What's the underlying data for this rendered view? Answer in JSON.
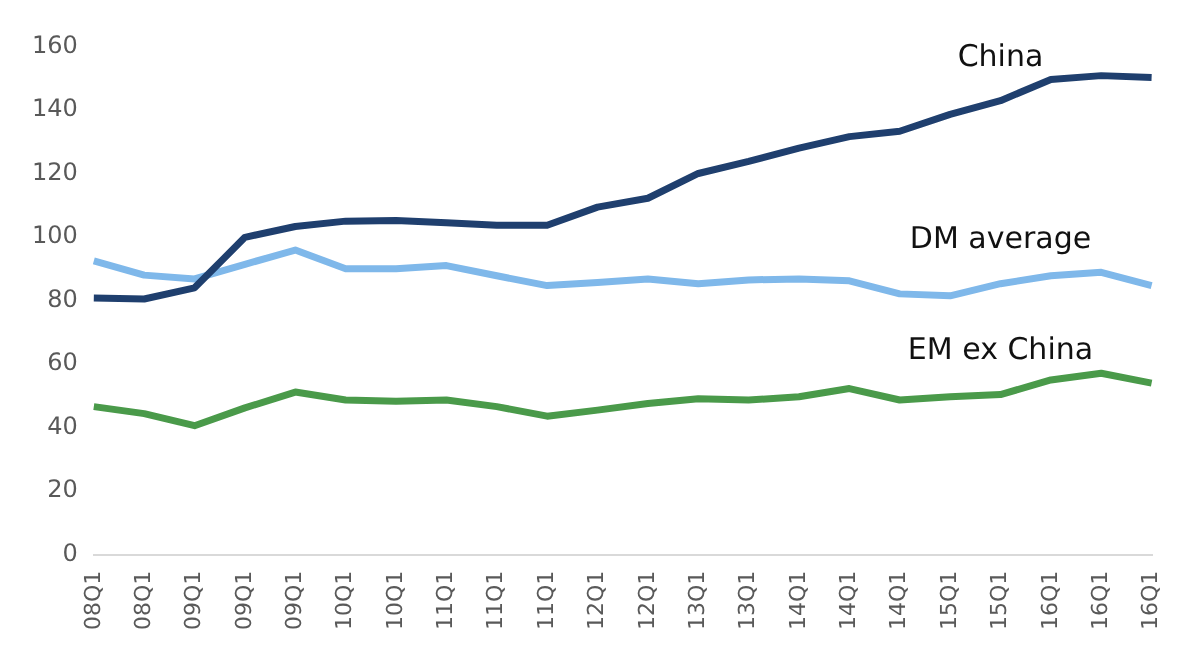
{
  "chart_data": {
    "type": "line",
    "categories": [
      "08Q1",
      "08Q1",
      "09Q1",
      "09Q1",
      "09Q1",
      "10Q1",
      "10Q1",
      "11Q1",
      "11Q1",
      "11Q1",
      "12Q1",
      "12Q1",
      "13Q1",
      "13Q1",
      "14Q1",
      "14Q1",
      "14Q1",
      "15Q1",
      "15Q1",
      "16Q1",
      "16Q1",
      "16Q1"
    ],
    "series": [
      {
        "name": "China",
        "color": "#1f3f6e",
        "values": [
          80.8,
          80.5,
          84,
          99.9,
          103.3,
          105,
          105.2,
          104.5,
          103.7,
          103.7,
          109.4,
          112.2,
          120,
          123.8,
          128,
          131.6,
          133.3,
          138.6,
          142.9,
          149.6,
          150.8,
          150.2
        ]
      },
      {
        "name": "DM average",
        "color": "#7fb8ea",
        "values": [
          92.5,
          88,
          86.8,
          91.4,
          95.9,
          90,
          90,
          91,
          87.8,
          84.7,
          85.7,
          86.8,
          85.3,
          86.5,
          86.8,
          86.2,
          82.1,
          81.5,
          85.3,
          87.8,
          88.9,
          84.7
        ]
      },
      {
        "name": "EM ex China",
        "color": "#4a9a4a",
        "values": [
          46.6,
          44.4,
          40.6,
          46.2,
          51.2,
          48.7,
          48.3,
          48.7,
          46.6,
          43.6,
          45.5,
          47.6,
          49.1,
          48.7,
          49.7,
          52.3,
          48.7,
          49.7,
          50.4,
          55,
          57.1,
          54
        ]
      }
    ],
    "ylim": [
      0,
      160
    ],
    "yticks": [
      0,
      20,
      40,
      60,
      80,
      100,
      120,
      140,
      160
    ],
    "grid": false,
    "legend": false,
    "marker": "none",
    "line_style": "solid"
  }
}
